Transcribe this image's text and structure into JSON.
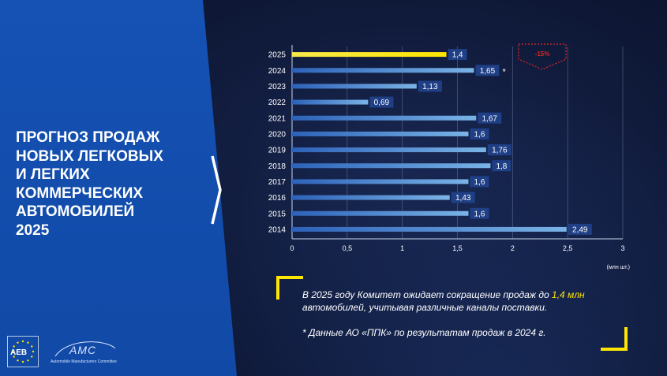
{
  "title": "ПРОГНОЗ ПРОДАЖ\nНОВЫХ ЛЕГКОВЫХ\nИ ЛЕГКИХ\nКОММЕРЧЕСКИХ\nАВТОМОБИЛЕЙ\n2025",
  "badge": "-15%",
  "note": {
    "line1_pre": "В 2025 году Комитет ожидает сокращение продаж до ",
    "line1_hl": "1,4 млн",
    "line2": "автомобилей, учитывая различные каналы поставки.",
    "line3": "* Данные АО «ППК» по результатам продаж в 2024 г."
  },
  "logos": {
    "aeb": "AEB",
    "amc": "AMC",
    "amc_sub": "Automobile Manufacturers Committee"
  },
  "colors": {
    "panel": "#1552b4",
    "highlight": "#ffe600",
    "bar": "#7ab3e6",
    "label_bg": "#1f3f86",
    "badge": "#e5231f"
  },
  "chart_data": {
    "type": "bar",
    "orientation": "horizontal",
    "categories": [
      "2025",
      "2024",
      "2023",
      "2022",
      "2021",
      "2020",
      "2019",
      "2018",
      "2017",
      "2016",
      "2015",
      "2014"
    ],
    "values": [
      1.4,
      1.65,
      1.13,
      0.69,
      1.67,
      1.6,
      1.76,
      1.8,
      1.6,
      1.43,
      1.6,
      2.49
    ],
    "value_labels": [
      "1,4",
      "1,65",
      "1,13",
      "0,69",
      "1,67",
      "1,6",
      "1,76",
      "1,8",
      "1,6",
      "1,43",
      "1,6",
      "2,49"
    ],
    "highlighted": [
      true,
      false,
      false,
      false,
      false,
      false,
      false,
      false,
      false,
      false,
      false,
      false
    ],
    "footnote_marker": [
      "",
      "*",
      "",
      "",
      "",
      "",
      "",
      "",
      "",
      "",
      "",
      ""
    ],
    "xticks": [
      0,
      0.5,
      1,
      1.5,
      2,
      2.5,
      3
    ],
    "xtick_labels": [
      "0",
      "0,5",
      "1",
      "1,5",
      "2",
      "2,5",
      "3"
    ],
    "xlim": [
      0,
      3
    ],
    "unit_label": "(млн шт.)",
    "grid": true
  }
}
